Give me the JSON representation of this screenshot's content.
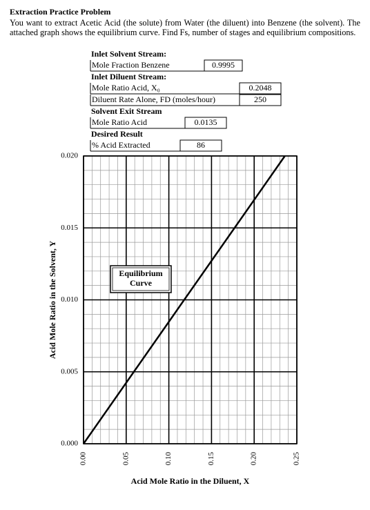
{
  "header": {
    "title": "Extraction Practice Problem",
    "text": "You want to extract Acetic Acid (the solute) from Water (the diluent) into Benzene (the solvent). The attached graph shows the equilibrium curve.  Find Fs, number of stages and equilibrium compositions."
  },
  "form": [
    {
      "heading": "Inlet Solvent Stream:",
      "rows": [
        {
          "label": "Mole Fraction Benzene",
          "value": 0.9995
        }
      ]
    },
    {
      "heading": "Inlet Diluent Stream:",
      "rows": [
        {
          "label": "Mole Ratio Acid, X₀",
          "value": 0.2048
        },
        {
          "label": "Diluent Rate Alone, FD (moles/hour)",
          "value": 250
        }
      ]
    },
    {
      "heading": "Solvent Exit Stream",
      "rows": [
        {
          "label": "Mole Ratio Acid",
          "value": 0.0135
        }
      ]
    },
    {
      "heading": "Desired Result",
      "rows": [
        {
          "label": "% Acid Extracted",
          "value": 86
        }
      ]
    }
  ],
  "chart_data": {
    "type": "line",
    "x_label": "Acid Mole Ratio in the Diluent, X",
    "y_label": "Acid Mole Ratio in the Solvent, Y",
    "annotation": "Equilibrium Curve",
    "series": [
      {
        "name": "Equilibrium Curve",
        "color": "#000000",
        "x": [
          0,
          0.236
        ],
        "values": [
          0,
          0.02
        ]
      }
    ],
    "xlim": [
      0,
      0.25
    ],
    "ylim": [
      0,
      0.02
    ],
    "xticks": [
      {
        "value": 0,
        "label": "0.00"
      },
      {
        "value": 0.05,
        "label": "0.05"
      },
      {
        "value": 0.1,
        "label": "0.10"
      },
      {
        "value": 0.15,
        "label": "0.15"
      },
      {
        "value": 0.2,
        "label": "0.20"
      },
      {
        "value": 0.25,
        "label": "0.25"
      }
    ],
    "yticks": [
      {
        "value": 0,
        "label": "0.000"
      },
      {
        "value": 0.005,
        "label": "0.005"
      },
      {
        "value": 0.01,
        "label": "0.010"
      },
      {
        "value": 0.015,
        "label": "0.015"
      },
      {
        "value": 0.02,
        "label": "0.020"
      }
    ],
    "xticks_minor": [
      0.01,
      0.02,
      0.03,
      0.04,
      0.06,
      0.07,
      0.08,
      0.09,
      0.11,
      0.12,
      0.13,
      0.14,
      0.16,
      0.17,
      0.18,
      0.19,
      0.21,
      0.22,
      0.23,
      0.24
    ],
    "yticks_minor": [
      0.001,
      0.002,
      0.003,
      0.004,
      0.006,
      0.007,
      0.008,
      0.009,
      0.011,
      0.012,
      0.013,
      0.014,
      0.016,
      0.017,
      0.018,
      0.019
    ],
    "grid": true
  }
}
